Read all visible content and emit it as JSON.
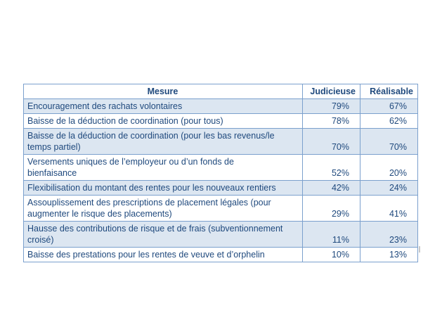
{
  "colors": {
    "text_blue": "#1F497D",
    "row_shading": "#DCE6F1",
    "border_blue": "#7BA0CD"
  },
  "table": {
    "columns": [
      "Mesure",
      "Judicieuse",
      "Réalisable"
    ],
    "rows": [
      {
        "mesure": "Encouragement des rachats volontaires",
        "judicieuse": "79%",
        "realisable": "67%"
      },
      {
        "mesure": "Baisse de la déduction de coordination (pour tous)",
        "judicieuse": "78%",
        "realisable": "62%"
      },
      {
        "mesure": "Baisse de la déduction de coordination (pour les bas revenus/le\ntemps partiel)",
        "judicieuse": "70%",
        "realisable": "70%"
      },
      {
        "mesure": "Versements uniques de l’employeur ou d’un fonds de\nbienfaisance",
        "judicieuse": "52%",
        "realisable": "20%"
      },
      {
        "mesure": "Flexibilisation du montant des rentes pour les nouveaux rentiers",
        "judicieuse": "42%",
        "realisable": "24%"
      },
      {
        "mesure": "Assouplissement des prescriptions de placement légales (pour\naugmenter le risque des placements)",
        "judicieuse": "29%",
        "realisable": "41%"
      },
      {
        "mesure": "Hausse des contributions de risque et de frais (subventionnement\ncroisé)",
        "judicieuse": "11%",
        "realisable": "23%"
      },
      {
        "mesure": "Baisse des prestations pour les rentes de veuve et d’orphelin",
        "judicieuse": "10%",
        "realisable": "13%"
      }
    ]
  }
}
